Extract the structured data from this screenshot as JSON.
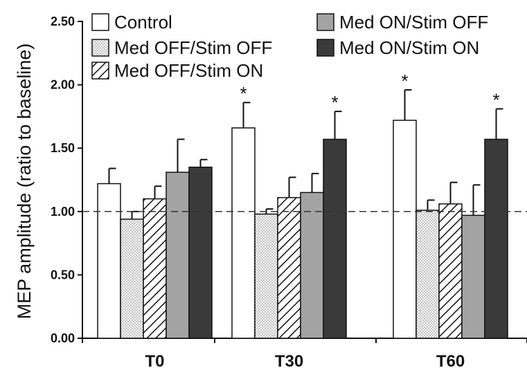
{
  "chart_data": {
    "type": "bar",
    "title": "",
    "xlabel": "",
    "ylabel": "MEP amplitude (ratio to baseline)",
    "ylim": [
      0,
      2.5
    ],
    "yticks": [
      "0.00",
      "0.50",
      "1.00",
      "1.50",
      "2.00",
      "2.50"
    ],
    "categories": [
      "T0",
      "T30",
      "T60"
    ],
    "reference_line": 1.0,
    "legend_placement": "top",
    "series": [
      {
        "name": "Control",
        "values": [
          1.22,
          1.66,
          1.72
        ],
        "errors": [
          0.12,
          0.2,
          0.24
        ],
        "pattern": "white",
        "significant": [
          false,
          true,
          true
        ]
      },
      {
        "name": "Med OFF/Stim OFF",
        "values": [
          0.94,
          0.98,
          1.01
        ],
        "errors": [
          0.06,
          0.04,
          0.08
        ],
        "pattern": "dotted",
        "significant": [
          false,
          false,
          false
        ]
      },
      {
        "name": "Med OFF/Stim ON",
        "values": [
          1.1,
          1.11,
          1.06
        ],
        "errors": [
          0.1,
          0.16,
          0.17
        ],
        "pattern": "hatched",
        "significant": [
          false,
          false,
          false
        ]
      },
      {
        "name": "Med ON/Stim OFF",
        "values": [
          1.31,
          1.15,
          0.97
        ],
        "errors": [
          0.26,
          0.15,
          0.24
        ],
        "pattern": "gray",
        "significant": [
          false,
          false,
          false
        ]
      },
      {
        "name": "Med ON/Stim ON",
        "values": [
          1.35,
          1.57,
          1.57
        ],
        "errors": [
          0.06,
          0.22,
          0.24
        ],
        "pattern": "black",
        "significant": [
          false,
          true,
          true
        ]
      }
    ],
    "significance_marker": "*",
    "colors": {
      "white": "#ffffff",
      "dotted_bg": "#f2f2f2",
      "gray": "#a3a3a3",
      "black": "#3a3a3a",
      "axis": "#111111"
    }
  }
}
